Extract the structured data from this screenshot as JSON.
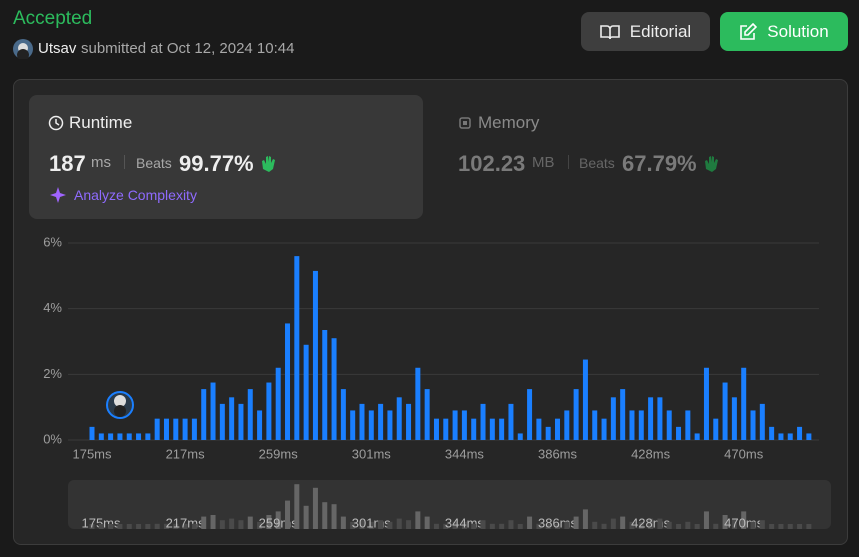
{
  "header": {
    "status": "Accepted",
    "user": "Utsav",
    "submitted": "submitted at Oct 12, 2024 10:44"
  },
  "buttons": {
    "editorial": "Editorial",
    "solution": "Solution"
  },
  "runtime": {
    "title": "Runtime",
    "value": "187",
    "unit": "ms",
    "beats_label": "Beats",
    "beats": "99.77%",
    "analyze": "Analyze Complexity"
  },
  "memory": {
    "title": "Memory",
    "value": "102.23",
    "unit": "MB",
    "beats_label": "Beats",
    "beats": "67.79%"
  },
  "chart_data": {
    "type": "bar",
    "color": "#1a7fff",
    "grid": true,
    "categories": [
      "175ms",
      null,
      null,
      null,
      null,
      null,
      null,
      null,
      null,
      null,
      "217ms",
      null,
      null,
      null,
      null,
      null,
      null,
      null,
      null,
      null,
      "259ms",
      null,
      null,
      null,
      null,
      null,
      null,
      null,
      null,
      null,
      "301ms",
      null,
      null,
      null,
      null,
      null,
      null,
      null,
      null,
      null,
      "344ms",
      null,
      null,
      null,
      null,
      null,
      null,
      null,
      null,
      null,
      "386ms",
      null,
      null,
      null,
      null,
      null,
      null,
      null,
      null,
      null,
      "428ms",
      null,
      null,
      null,
      null,
      null,
      null,
      null,
      null,
      null,
      "470ms",
      null,
      null,
      null,
      null,
      null,
      null,
      null
    ],
    "values": [
      0.4,
      0.2,
      0.2,
      0.2,
      0.2,
      0.2,
      0.2,
      0.65,
      0.65,
      0.65,
      0.65,
      0.65,
      1.55,
      1.75,
      1.1,
      1.3,
      1.1,
      1.55,
      0.9,
      1.75,
      2.2,
      3.55,
      5.6,
      2.9,
      5.15,
      3.35,
      3.1,
      1.55,
      0.9,
      1.1,
      0.9,
      1.1,
      0.9,
      1.3,
      1.1,
      2.2,
      1.55,
      0.65,
      0.65,
      0.9,
      0.9,
      0.65,
      1.1,
      0.65,
      0.65,
      1.1,
      0.2,
      1.55,
      0.65,
      0.4,
      0.65,
      0.9,
      1.55,
      2.45,
      0.9,
      0.65,
      1.3,
      1.55,
      0.9,
      0.9,
      1.3,
      1.3,
      0.9,
      0.4,
      0.9,
      0.2,
      2.2,
      0.65,
      1.75,
      1.3,
      2.2,
      0.9,
      1.1,
      0.4,
      0.2,
      0.2,
      0.4,
      0.2
    ],
    "ylim": [
      0,
      6
    ],
    "yticks": [
      {
        "value": 0,
        "label": "0%"
      },
      {
        "value": 2,
        "label": "2%"
      },
      {
        "value": 4,
        "label": "4%"
      },
      {
        "value": 6,
        "label": "6%"
      }
    ]
  }
}
